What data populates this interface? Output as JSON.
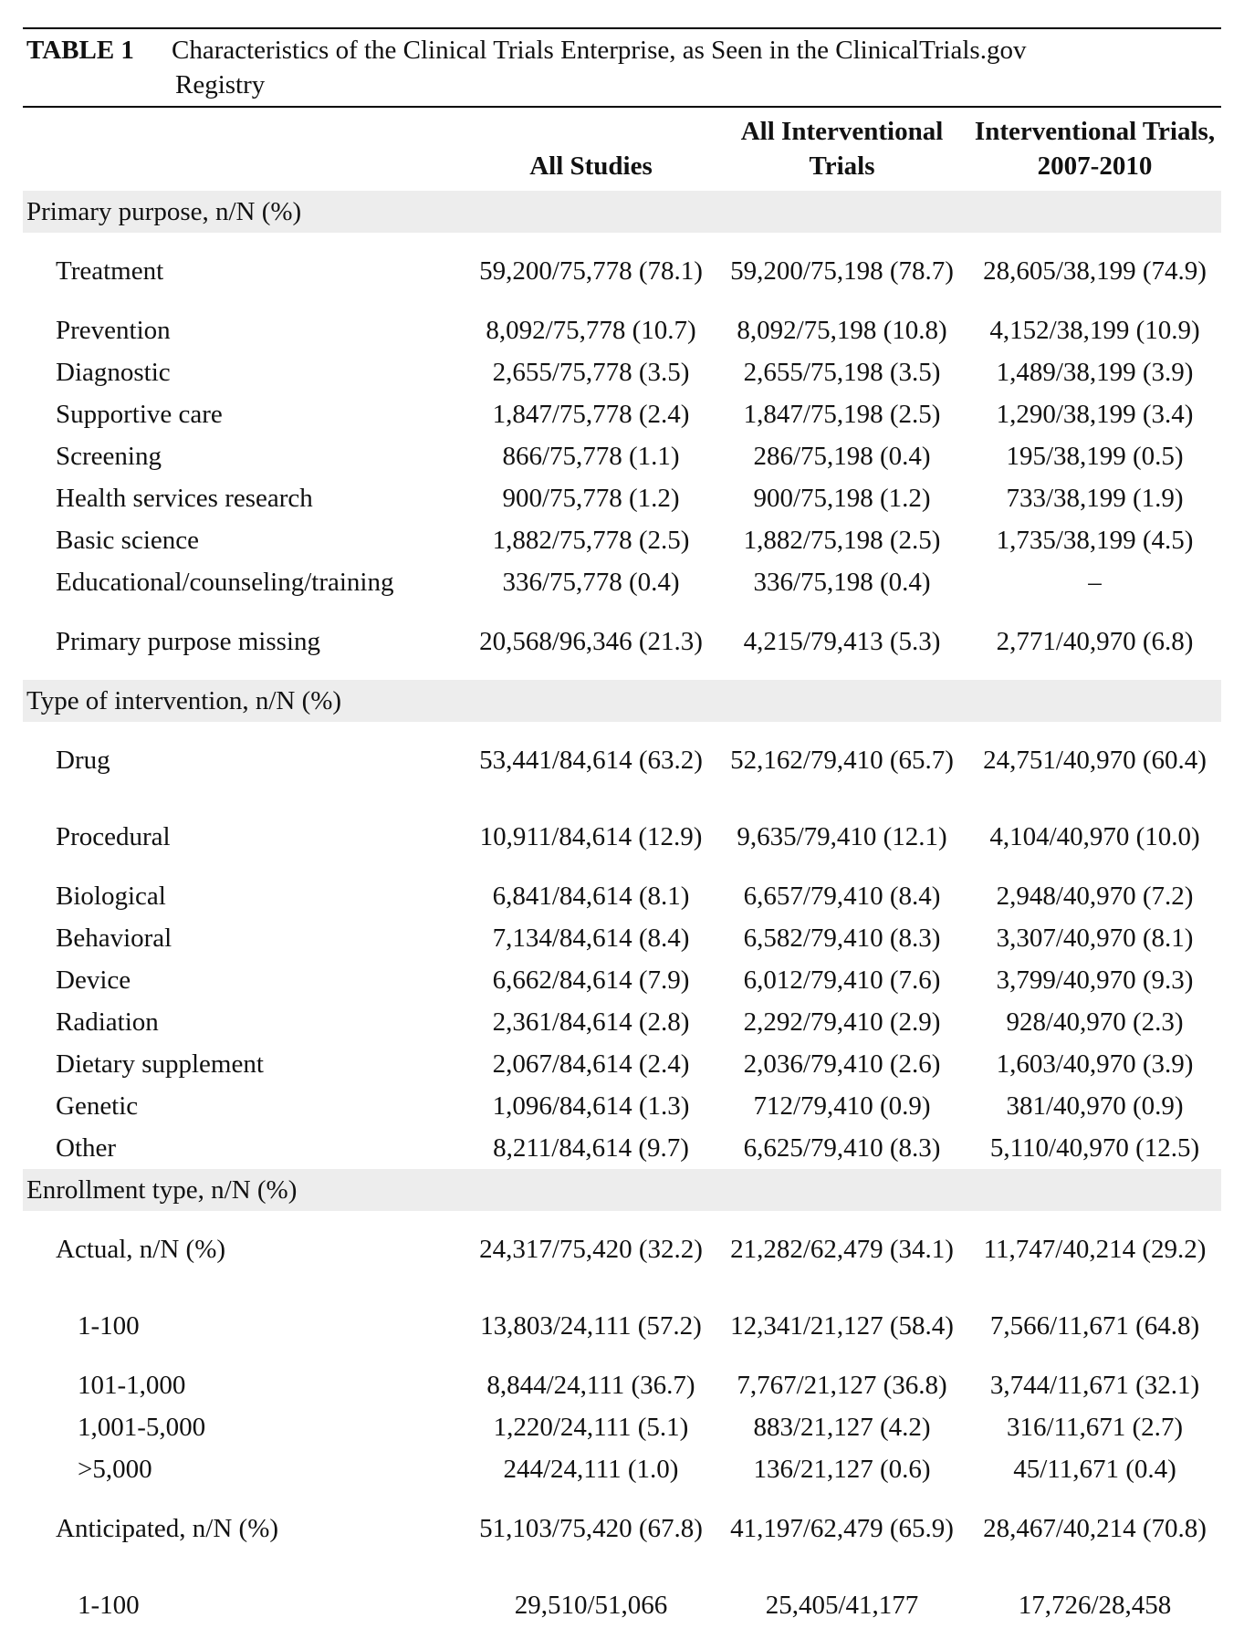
{
  "table": {
    "label": "TABLE 1",
    "caption_line1": "Characteristics of the Clinical Trials Enterprise, as Seen in the ClinicalTrials.gov",
    "caption_line2": "Registry",
    "columns": [
      "",
      "All Studies",
      "All Interventional Trials",
      "Interventional Trials, 2007-2010"
    ],
    "sections": [
      {
        "title": "Primary purpose, n/N (%)",
        "rows": [
          {
            "label": "Treatment",
            "indent": 1,
            "values": [
              "59,200/75,778 (78.1)",
              "59,200/75,198 (78.7)",
              "28,605/38,199 (74.9)"
            ]
          },
          {
            "label": "Prevention",
            "indent": 1,
            "values": [
              "8,092/75,778 (10.7)",
              "8,092/75,198 (10.8)",
              "4,152/38,199 (10.9)"
            ]
          },
          {
            "label": "Diagnostic",
            "indent": 1,
            "values": [
              "2,655/75,778 (3.5)",
              "2,655/75,198 (3.5)",
              "1,489/38,199 (3.9)"
            ]
          },
          {
            "label": "Supportive care",
            "indent": 1,
            "values": [
              "1,847/75,778 (2.4)",
              "1,847/75,198 (2.5)",
              "1,290/38,199 (3.4)"
            ]
          },
          {
            "label": "Screening",
            "indent": 1,
            "values": [
              "866/75,778 (1.1)",
              "286/75,198 (0.4)",
              "195/38,199 (0.5)"
            ]
          },
          {
            "label": "Health services research",
            "indent": 1,
            "values": [
              "900/75,778 (1.2)",
              "900/75,198 (1.2)",
              "733/38,199 (1.9)"
            ]
          },
          {
            "label": "Basic science",
            "indent": 1,
            "values": [
              "1,882/75,778 (2.5)",
              "1,882/75,198 (2.5)",
              "1,735/38,199 (4.5)"
            ]
          },
          {
            "label": "Educational/counseling/training",
            "indent": 1,
            "values": [
              "336/75,778 (0.4)",
              "336/75,198 (0.4)",
              "–"
            ]
          },
          {
            "label": "Primary purpose missing",
            "indent": 1,
            "values": [
              "20,568/96,346 (21.3)",
              "4,215/79,413 (5.3)",
              "2,771/40,970 (6.8)"
            ]
          }
        ]
      },
      {
        "title": "Type of intervention, n/N (%)",
        "rows": [
          {
            "label": "Drug",
            "indent": 1,
            "values": [
              "53,441/84,614 (63.2)",
              "52,162/79,410 (65.7)",
              "24,751/40,970 (60.4)"
            ]
          },
          {
            "label": "Procedural",
            "indent": 1,
            "values": [
              "10,911/84,614 (12.9)",
              "9,635/79,410 (12.1)",
              "4,104/40,970 (10.0)"
            ]
          },
          {
            "label": "Biological",
            "indent": 1,
            "values": [
              "6,841/84,614 (8.1)",
              "6,657/79,410 (8.4)",
              "2,948/40,970 (7.2)"
            ]
          },
          {
            "label": "Behavioral",
            "indent": 1,
            "values": [
              "7,134/84,614 (8.4)",
              "6,582/79,410 (8.3)",
              "3,307/40,970 (8.1)"
            ]
          },
          {
            "label": "Device",
            "indent": 1,
            "values": [
              "6,662/84,614 (7.9)",
              "6,012/79,410 (7.6)",
              "3,799/40,970 (9.3)"
            ]
          },
          {
            "label": "Radiation",
            "indent": 1,
            "values": [
              "2,361/84,614 (2.8)",
              "2,292/79,410 (2.9)",
              "928/40,970 (2.3)"
            ]
          },
          {
            "label": "Dietary supplement",
            "indent": 1,
            "values": [
              "2,067/84,614 (2.4)",
              "2,036/79,410 (2.6)",
              "1,603/40,970 (3.9)"
            ]
          },
          {
            "label": "Genetic",
            "indent": 1,
            "values": [
              "1,096/84,614 (1.3)",
              "712/79,410 (0.9)",
              "381/40,970 (0.9)"
            ]
          },
          {
            "label": "Other",
            "indent": 1,
            "values": [
              "8,211/84,614 (9.7)",
              "6,625/79,410 (8.3)",
              "5,110/40,970 (12.5)"
            ]
          }
        ]
      },
      {
        "title": "Enrollment type, n/N (%)",
        "rows": [
          {
            "label": "Actual, n/N (%)",
            "indent": 1,
            "values": [
              "24,317/75,420 (32.2)",
              "21,282/62,479 (34.1)",
              "11,747/40,214 (29.2)"
            ]
          },
          {
            "label": "1-100",
            "indent": 2,
            "values": [
              "13,803/24,111 (57.2)",
              "12,341/21,127 (58.4)",
              "7,566/11,671 (64.8)"
            ]
          },
          {
            "label": "101-1,000",
            "indent": 2,
            "values": [
              "8,844/24,111 (36.7)",
              "7,767/21,127 (36.8)",
              "3,744/11,671 (32.1)"
            ]
          },
          {
            "label": "1,001-5,000",
            "indent": 2,
            "values": [
              "1,220/24,111 (5.1)",
              "883/21,127 (4.2)",
              "316/11,671 (2.7)"
            ]
          },
          {
            "label": ">5,000",
            "indent": 2,
            "values": [
              "244/24,111 (1.0)",
              "136/21,127 (0.6)",
              "45/11,671 (0.4)"
            ]
          },
          {
            "label": "Anticipated, n/N (%)",
            "indent": 1,
            "values": [
              "51,103/75,420 (67.8)",
              "41,197/62,479 (65.9)",
              "28,467/40,214 (70.8)"
            ]
          },
          {
            "label": "1-100",
            "indent": 2,
            "values": [
              "29,510/51,066",
              "25,405/41,177",
              "17,726/28,458"
            ]
          }
        ]
      }
    ]
  }
}
